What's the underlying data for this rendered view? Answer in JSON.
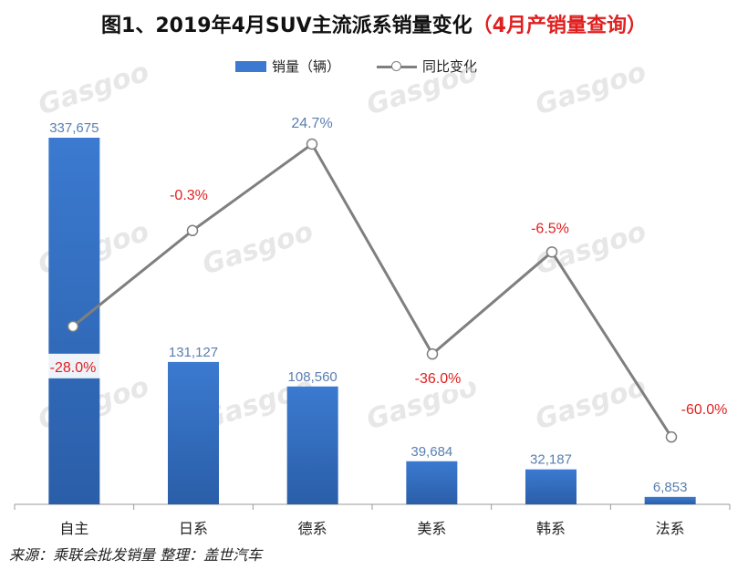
{
  "title": {
    "main": "图1、2019年4月SUV主流派系销量变化",
    "highlight": "（4月产销量查询）"
  },
  "source": "来源：乘联会批发销量 整理：盖世汽车",
  "watermark": "Gasgoo",
  "colors": {
    "bar": "#3b7ad0",
    "line": "#7f7f7f",
    "label_positive": "#5a7fb0",
    "label_negative": "#e02020"
  },
  "chart_data": {
    "type": "bar",
    "categories": [
      "自主",
      "日系",
      "德系",
      "美系",
      "韩系",
      "法系"
    ],
    "series": [
      {
        "name": "销量（辆）",
        "type": "bar",
        "values": [
          337675,
          131127,
          108560,
          39684,
          32187,
          6853
        ],
        "labels": [
          "337,675",
          "131,127",
          "108,560",
          "39,684",
          "32,187",
          "6,853"
        ]
      },
      {
        "name": "同比变化",
        "type": "line",
        "values": [
          -28.0,
          -0.3,
          24.7,
          -36.0,
          -6.5,
          -60.0
        ],
        "labels": [
          "-28.0%",
          "-0.3%",
          "24.7%",
          "-36.0%",
          "-6.5%",
          "-60.0%"
        ]
      }
    ],
    "bar_axis_range": [
      0,
      345000
    ],
    "line_axis_range": [
      -80,
      40
    ],
    "legend": "top-center",
    "grid": false
  }
}
